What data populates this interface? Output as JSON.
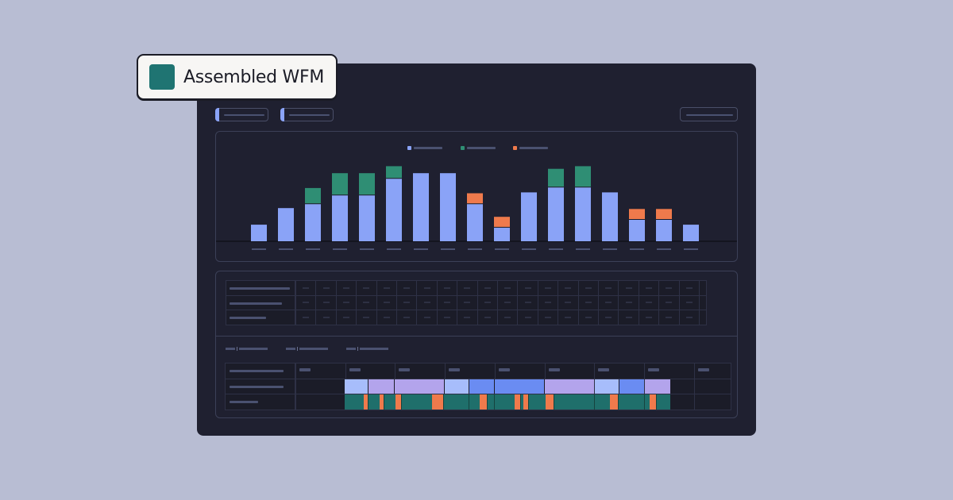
{
  "badge": {
    "title": "Assembled WFM",
    "logo_color": "#1f7472"
  },
  "colors": {
    "background": "#b8bdd3",
    "window": "#1f2030",
    "blue": "#8aa3f7",
    "blue_dark": "#6a8cf2",
    "lavender": "#b3a4ec",
    "light_blue": "#a7bdfb",
    "teal": "#2f8e74",
    "teal_dark": "#1f6f6b",
    "orange": "#ef7a4c"
  },
  "chart_data": {
    "type": "bar",
    "stacked": true,
    "categories": [
      "",
      "",
      "",
      "",
      "",
      "",
      "",
      "",
      "",
      "",
      "",
      "",
      "",
      "",
      "",
      "",
      ""
    ],
    "series": [
      {
        "color": "#8aa3f7",
        "values": [
          19,
          38,
          43,
          53,
          53,
          72,
          78,
          78,
          43,
          16,
          56,
          62,
          62,
          56,
          25,
          25,
          19
        ]
      },
      {
        "color": "#2f8e74",
        "values": [
          0,
          0,
          18,
          25,
          25,
          14,
          0,
          0,
          0,
          0,
          0,
          21,
          24,
          0,
          0,
          0,
          0
        ]
      },
      {
        "color": "#ef7a4c",
        "values": [
          0,
          0,
          0,
          0,
          0,
          0,
          0,
          0,
          12,
          12,
          0,
          0,
          0,
          0,
          12,
          12,
          0
        ]
      }
    ],
    "ylim": [
      0,
      100
    ],
    "grid": false,
    "legend": "top-center"
  }
}
